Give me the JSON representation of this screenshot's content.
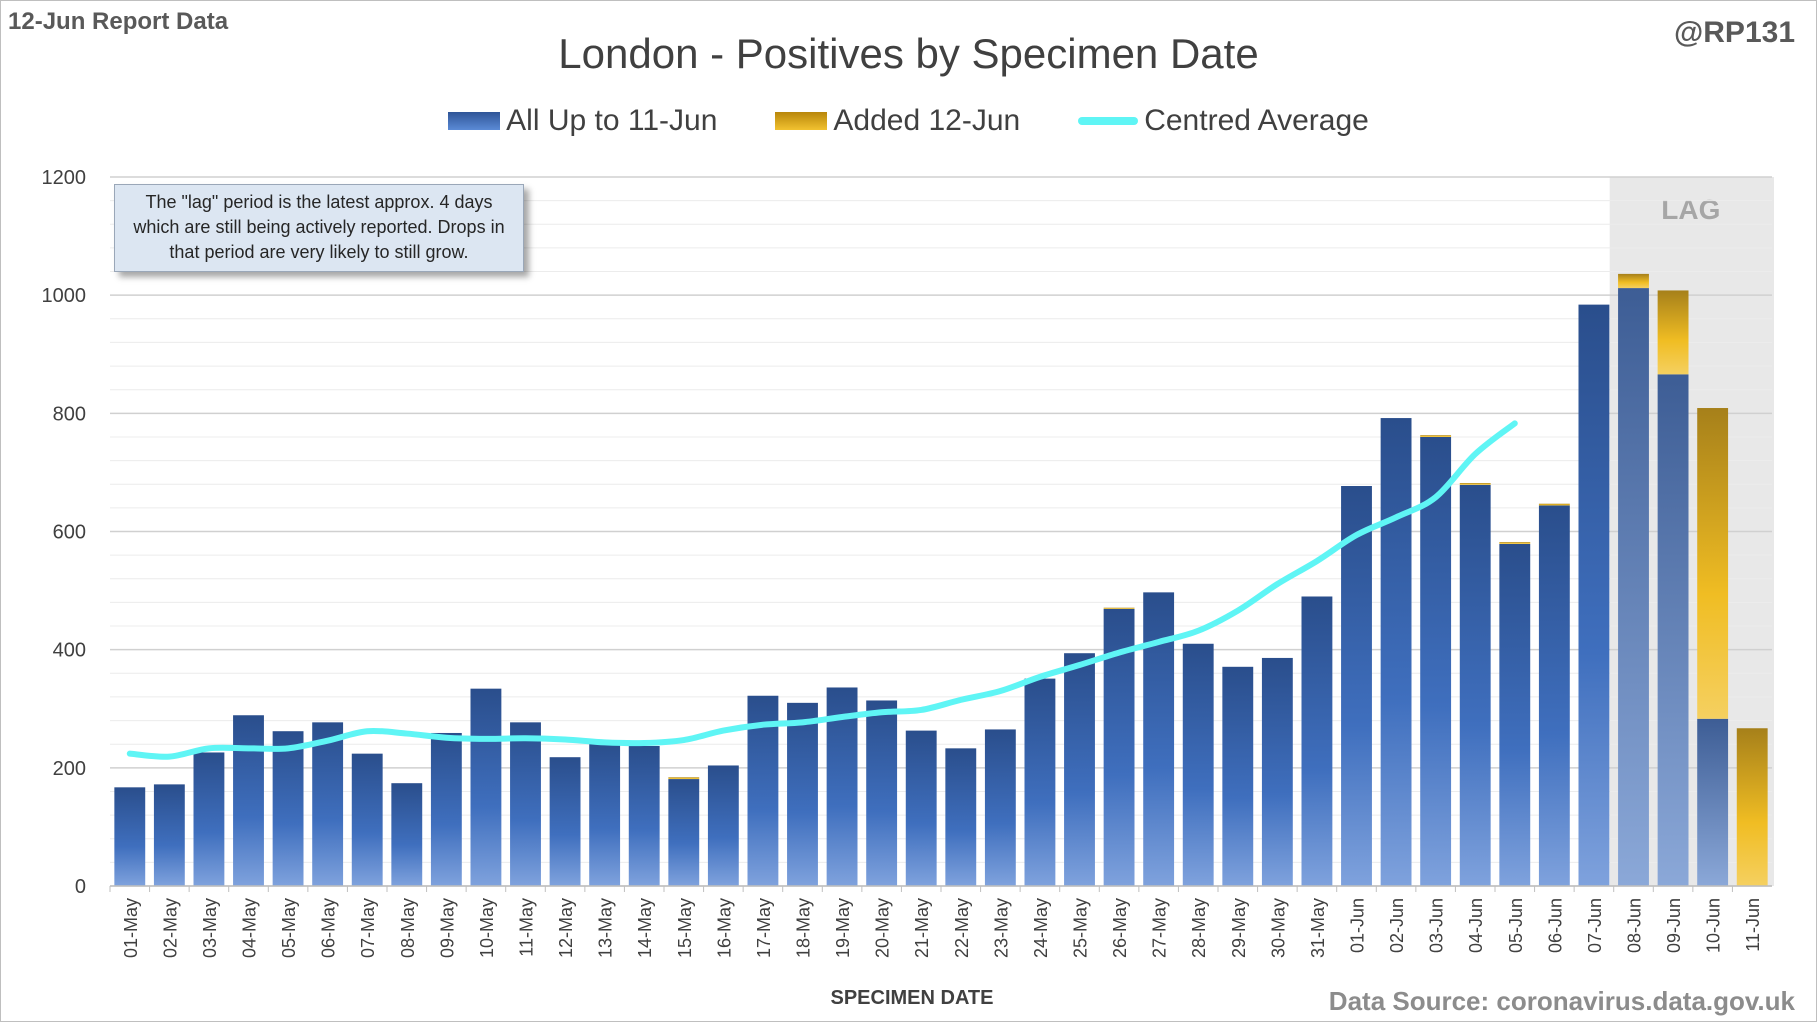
{
  "header": {
    "report_label": "12-Jun Report Data",
    "handle": "@RP131",
    "source": "Data Source: coronavirus.data.gov.uk"
  },
  "note": {
    "text": "The \"lag\" period is the latest approx. 4 days which are still being actively reported.  Drops in that period are very likely to still grow."
  },
  "colors": {
    "base_series": "#2f5597",
    "added_series": "#f0b400",
    "average_line": "#5ff5f5",
    "lag_shade": "#e8e8e8"
  },
  "chart_data": {
    "type": "bar",
    "stacked": true,
    "title": "London - Positives by Specimen Date",
    "xlabel": "SPECIMEN DATE",
    "ylabel": "",
    "ylim": [
      0,
      1200
    ],
    "yticks": [
      0,
      200,
      400,
      600,
      800,
      1000,
      1200
    ],
    "grid": true,
    "legend_position": "top-center",
    "lag_label": "LAG",
    "lag_categories": [
      "08-Jun",
      "09-Jun",
      "10-Jun",
      "11-Jun"
    ],
    "categories": [
      "01-May",
      "02-May",
      "03-May",
      "04-May",
      "05-May",
      "06-May",
      "07-May",
      "08-May",
      "09-May",
      "10-May",
      "11-May",
      "12-May",
      "13-May",
      "14-May",
      "15-May",
      "16-May",
      "17-May",
      "18-May",
      "19-May",
      "20-May",
      "21-May",
      "22-May",
      "23-May",
      "24-May",
      "25-May",
      "26-May",
      "27-May",
      "28-May",
      "29-May",
      "30-May",
      "31-May",
      "01-Jun",
      "02-Jun",
      "03-Jun",
      "04-Jun",
      "05-Jun",
      "06-Jun",
      "07-Jun",
      "08-Jun",
      "09-Jun",
      "10-Jun",
      "11-Jun"
    ],
    "series": [
      {
        "name": "All Up to 11-Jun",
        "kind": "bar",
        "values": [
          167,
          172,
          226,
          289,
          262,
          277,
          224,
          174,
          259,
          334,
          277,
          218,
          242,
          237,
          181,
          204,
          322,
          310,
          336,
          314,
          263,
          233,
          265,
          351,
          394,
          469,
          497,
          410,
          371,
          386,
          490,
          677,
          792,
          760,
          679,
          579,
          644,
          984,
          1012,
          866,
          283,
          0
        ]
      },
      {
        "name": "Added 12-Jun",
        "kind": "bar",
        "values": [
          0,
          0,
          0,
          0,
          0,
          0,
          0,
          0,
          0,
          0,
          0,
          0,
          0,
          0,
          3,
          0,
          0,
          0,
          0,
          0,
          0,
          0,
          0,
          0,
          0,
          2,
          0,
          0,
          0,
          0,
          0,
          0,
          0,
          3,
          3,
          3,
          3,
          0,
          24,
          142,
          526,
          267
        ]
      },
      {
        "name": "Centred Average",
        "kind": "line",
        "values": [
          224,
          219,
          233,
          233,
          233,
          246,
          262,
          258,
          251,
          249,
          250,
          248,
          243,
          242,
          247,
          263,
          273,
          277,
          286,
          294,
          298,
          315,
          330,
          354,
          374,
          395,
          413,
          432,
          466,
          511,
          550,
          594,
          624,
          658,
          731,
          783,
          null,
          null,
          null,
          null,
          null,
          null
        ]
      }
    ]
  }
}
